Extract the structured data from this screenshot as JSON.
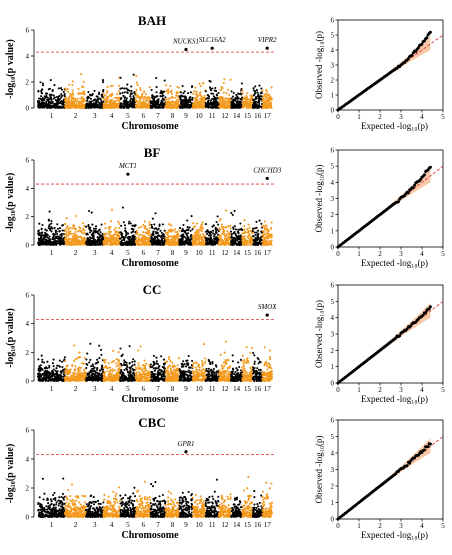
{
  "colors": {
    "odd_chromosome": "#000000",
    "even_chromosome": "#f39a1e",
    "threshold": "#e03030",
    "qq_band": "#f7b58a",
    "qq_diagonal": "#e03030"
  },
  "manhattan_ylabel": "-log₁₀(p value)",
  "manhattan_xlabel": "Chromosome",
  "qq_xlabel": "Expected -log₁₀(p)",
  "qq_ylabel": "Observed -log₁₀(p)",
  "chart_data": [
    {
      "type": "scatter",
      "subtype": "manhattan",
      "title": "BAH",
      "ylim": [
        0,
        6
      ],
      "yticks": [
        "0",
        "2",
        "4",
        "6"
      ],
      "threshold": 4.3,
      "chromosome_labels": [
        "1",
        "2",
        "3",
        "4",
        "5",
        "6",
        "7",
        "8",
        "9",
        "10",
        "11",
        "12",
        "14",
        "15",
        "16",
        "17"
      ],
      "gene_labels": [
        {
          "text": "NUCKS1",
          "chromosome": "9",
          "value": 4.5
        },
        {
          "text": "SLC16A2",
          "chromosome": "11",
          "value": 4.6
        },
        {
          "text": "VIPR2",
          "chromosome": "17",
          "value": 4.6
        }
      ]
    },
    {
      "type": "scatter",
      "subtype": "qq",
      "xlim": [
        0,
        5
      ],
      "ylim": [
        0,
        6
      ],
      "xticks": [
        "0",
        "1",
        "2",
        "3",
        "4",
        "5"
      ],
      "yticks": [
        "0",
        "1",
        "2",
        "3",
        "4",
        "5",
        "6"
      ],
      "expected_max": 4.4,
      "observed_max": 5.2
    },
    {
      "type": "scatter",
      "subtype": "manhattan",
      "title": "BF",
      "ylim": [
        0,
        6
      ],
      "yticks": [
        "0",
        "2",
        "4",
        "6"
      ],
      "threshold": 4.3,
      "chromosome_labels": [
        "1",
        "2",
        "3",
        "4",
        "5",
        "6",
        "7",
        "8",
        "9",
        "10",
        "11",
        "12",
        "14",
        "15",
        "16",
        "17"
      ],
      "gene_labels": [
        {
          "text": "MCT1",
          "chromosome": "5",
          "value": 5.0
        },
        {
          "text": "CHCHD3",
          "chromosome": "17",
          "value": 4.7
        }
      ]
    },
    {
      "type": "scatter",
      "subtype": "qq",
      "xlim": [
        0,
        5
      ],
      "ylim": [
        0,
        6
      ],
      "xticks": [
        "0",
        "1",
        "2",
        "3",
        "4",
        "5"
      ],
      "yticks": [
        "0",
        "1",
        "2",
        "3",
        "4",
        "5",
        "6"
      ],
      "expected_max": 4.4,
      "observed_max": 5.0
    },
    {
      "type": "scatter",
      "subtype": "manhattan",
      "title": "CC",
      "ylim": [
        0,
        6
      ],
      "yticks": [
        "0",
        "2",
        "4",
        "6"
      ],
      "threshold": 4.3,
      "chromosome_labels": [
        "1",
        "2",
        "3",
        "4",
        "5",
        "6",
        "7",
        "8",
        "9",
        "10",
        "11",
        "12",
        "14",
        "15",
        "16",
        "17"
      ],
      "gene_labels": [
        {
          "text": "SMOX",
          "chromosome": "17",
          "value": 4.6
        }
      ]
    },
    {
      "type": "scatter",
      "subtype": "qq",
      "xlim": [
        0,
        5
      ],
      "ylim": [
        0,
        6
      ],
      "xticks": [
        "0",
        "1",
        "2",
        "3",
        "4",
        "5"
      ],
      "yticks": [
        "0",
        "1",
        "2",
        "3",
        "4",
        "5",
        "6"
      ],
      "expected_max": 4.4,
      "observed_max": 4.6
    },
    {
      "type": "scatter",
      "subtype": "manhattan",
      "title": "CBC",
      "ylim": [
        0,
        6
      ],
      "yticks": [
        "0",
        "2",
        "4",
        "6"
      ],
      "threshold": 4.3,
      "chromosome_labels": [
        "1",
        "2",
        "3",
        "4",
        "5",
        "6",
        "7",
        "8",
        "9",
        "10",
        "11",
        "12",
        "14",
        "15",
        "16",
        "17"
      ],
      "gene_labels": [
        {
          "text": "GPR1",
          "chromosome": "9",
          "value": 4.5
        }
      ]
    },
    {
      "type": "scatter",
      "subtype": "qq",
      "xlim": [
        0,
        5
      ],
      "ylim": [
        0,
        6
      ],
      "xticks": [
        "0",
        "1",
        "2",
        "3",
        "4",
        "5"
      ],
      "yticks": [
        "0",
        "1",
        "2",
        "3",
        "4",
        "5",
        "6"
      ],
      "expected_max": 4.4,
      "observed_max": 4.6
    }
  ]
}
